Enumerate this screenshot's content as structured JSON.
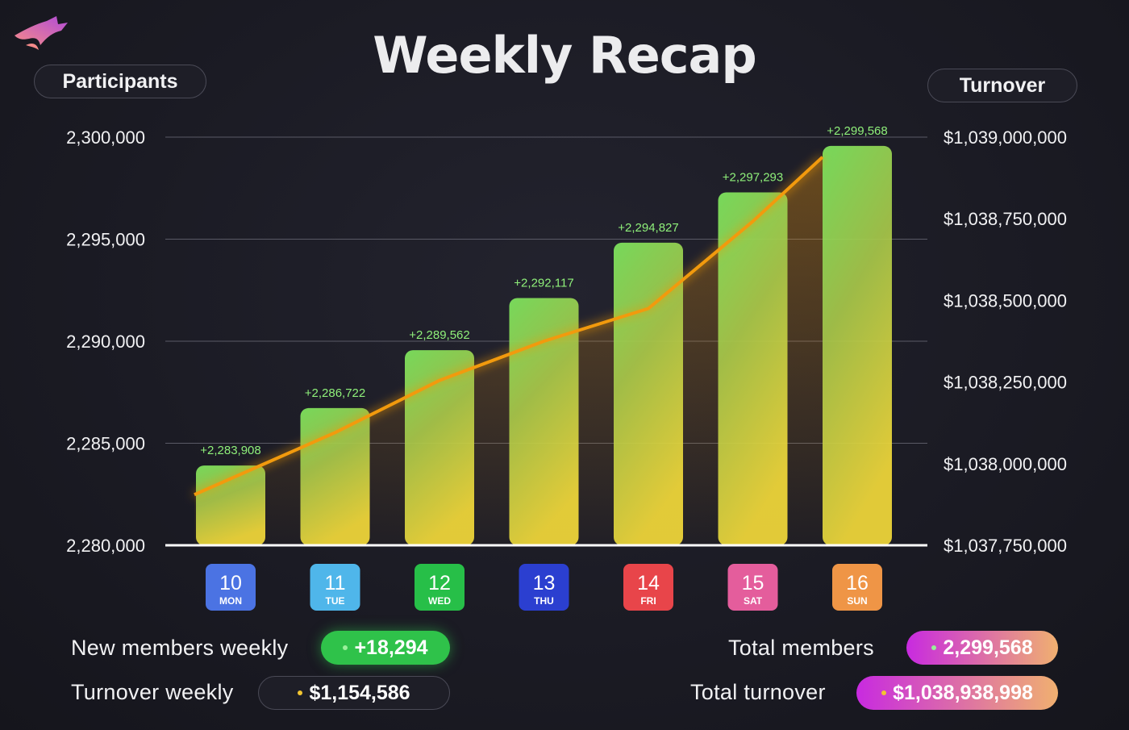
{
  "title": "Weekly Recap",
  "left_axis_label": "Participants",
  "right_axis_label": "Turnover",
  "colors": {
    "line": "#f29a0c",
    "bar_top": "#7ee85f",
    "bar_bottom": "#f2d93a",
    "new_members_pill": "#2fc24a",
    "total_pill_start": "#c82ae0",
    "total_pill_end": "#f0b070"
  },
  "chart_data": {
    "type": "bar",
    "categories": [
      "10 MON",
      "11 TUE",
      "12 WED",
      "13 THU",
      "14 FRI",
      "15 SAT",
      "16 SUN"
    ],
    "series": [
      {
        "name": "Participants",
        "type": "bar",
        "axis": "left",
        "values": [
          2283908,
          2286722,
          2289562,
          2292117,
          2294827,
          2297293,
          2299568
        ],
        "labels": [
          "+2,283,908",
          "+2,286,722",
          "+2,289,562",
          "+2,292,117",
          "+2,294,827",
          "+2,297,293",
          "+2,299,568"
        ]
      },
      {
        "name": "Turnover",
        "type": "line",
        "axis": "right",
        "values": [
          1037905000,
          1038095000,
          1038255000,
          1038375000,
          1038475000,
          1038742000,
          1038938998
        ]
      }
    ],
    "ylim_left": [
      2280000,
      2300000
    ],
    "yticks_left": [
      "2,300,000",
      "2,295,000",
      "2,290,000",
      "2,285,000",
      "2,280,000"
    ],
    "ylim_right": [
      1037750000,
      1039000000
    ],
    "yticks_right": [
      "$1,039,000,000",
      "$1,038,750,000",
      "$1,038,500,000",
      "$1,038,250,000",
      "$1,038,000,000",
      "$1,037,750,000"
    ],
    "grid": true
  },
  "days": [
    {
      "num": "10",
      "name": "MON",
      "color": "#4b73e3"
    },
    {
      "num": "11",
      "name": "TUE",
      "color": "#4fb6ea"
    },
    {
      "num": "12",
      "name": "WED",
      "color": "#27bf48"
    },
    {
      "num": "13",
      "name": "THU",
      "color": "#2b3fd0"
    },
    {
      "num": "14",
      "name": "FRI",
      "color": "#e8454a"
    },
    {
      "num": "15",
      "name": "SAT",
      "color": "#e45d9c"
    },
    {
      "num": "16",
      "name": "SUN",
      "color": "#ef9546"
    }
  ],
  "stats": {
    "new_members_label": "New members weekly",
    "new_members_value": "+18,294",
    "turnover_weekly_label": "Turnover weekly",
    "turnover_weekly_value": "$1,154,586",
    "total_members_label": "Total members",
    "total_members_value": "2,299,568",
    "total_turnover_label": "Total turnover",
    "total_turnover_value": "$1,038,938,998"
  },
  "icons": {
    "logo": "wolf-logo-icon"
  }
}
